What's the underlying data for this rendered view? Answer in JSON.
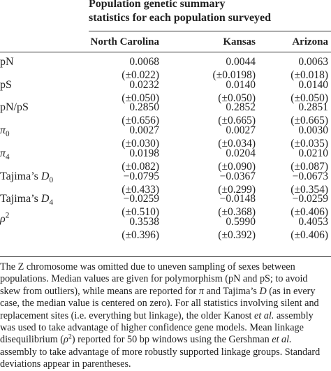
{
  "header": {
    "title_lines": [
      "Population genetic summary",
      "statistics for each population surveyed"
    ]
  },
  "table": {
    "columns": [
      "North Carolina",
      "Kansas",
      "Arizona"
    ],
    "rows": [
      {
        "label": [
          {
            "text": "pN"
          }
        ],
        "means": [
          "0.0068",
          "0.0044",
          "0.0063"
        ],
        "sds": [
          "(±0.022)",
          "(±0.0198)",
          "(±0.018)"
        ]
      },
      {
        "label": [
          {
            "text": "pS"
          }
        ],
        "means": [
          "0.0232",
          "0.0140",
          "0.0140"
        ],
        "sds": [
          "(±0.050)",
          "(±0.050)",
          "(±0.050)"
        ]
      },
      {
        "label": [
          {
            "text": "pN/pS"
          }
        ],
        "means": [
          "0.2850",
          "0.2852",
          "0.2851"
        ],
        "sds": [
          "(±0.656)",
          "(±0.665)",
          "(±0.665)"
        ]
      },
      {
        "label": [
          {
            "text": "π",
            "style": "italic"
          },
          {
            "text": "0",
            "style": "sub"
          }
        ],
        "means": [
          "0.0027",
          "0.0027",
          "0.0030"
        ],
        "sds": [
          "(±0.030)",
          "(±0.034)",
          "(±0.035)"
        ]
      },
      {
        "label": [
          {
            "text": "π",
            "style": "italic"
          },
          {
            "text": "4",
            "style": "sub"
          }
        ],
        "means": [
          "0.0198",
          "0.0204",
          "0.0210"
        ],
        "sds": [
          "(±0.082)",
          "(±0.090)",
          "(±0.087)"
        ]
      },
      {
        "label": [
          {
            "text": "Tajima’s "
          },
          {
            "text": "D",
            "style": "italic"
          },
          {
            "text": "0",
            "style": "sub"
          }
        ],
        "means": [
          "−0.0795",
          "−0.0367",
          "−0.0673"
        ],
        "sds": [
          "(±0.433)",
          "(±0.299)",
          "(±0.354)"
        ]
      },
      {
        "label": [
          {
            "text": "Tajima’s "
          },
          {
            "text": "D",
            "style": "italic"
          },
          {
            "text": "4",
            "style": "sub"
          }
        ],
        "means": [
          "−0.0259",
          "−0.0148",
          "−0.0259"
        ],
        "sds": [
          "(±0.510)",
          "(±0.368)",
          "(±0.406)"
        ]
      },
      {
        "label": [
          {
            "text": "ρ",
            "style": "italic"
          },
          {
            "text": "2",
            "style": "sup"
          }
        ],
        "means": [
          "0.3538",
          "0.5990",
          "0.4053"
        ],
        "sds": [
          "(±0.396)",
          "(±0.392)",
          "(±0.406)"
        ]
      }
    ]
  },
  "footnote": [
    {
      "text": "The Z chromosome was omitted due to uneven sampling of sexes between populations. Median values are given for polymorphism (pN and pS; to avoid skew from outliers), while means are reported for "
    },
    {
      "text": "π",
      "style": "italic"
    },
    {
      "text": " and Tajima’s "
    },
    {
      "text": "D",
      "style": "italic"
    },
    {
      "text": " (as in every case, the median value is centered on zero). For all statistics involving silent and replacement sites (i.e. everything but linkage), the older Kanost "
    },
    {
      "text": "et al.",
      "style": "italic"
    },
    {
      "text": " assembly was used to take advantage of higher confidence gene models. Mean linkage disequilibrium ("
    },
    {
      "text": "ρ",
      "style": "italic"
    },
    {
      "text": "2",
      "style": "sup"
    },
    {
      "text": ") reported for 50 bp windows using the Gershman "
    },
    {
      "text": "et al.",
      "style": "italic"
    },
    {
      "text": " assembly to take advantage of more robustly supported linkage groups. Standard deviations appear in parentheses."
    }
  ]
}
